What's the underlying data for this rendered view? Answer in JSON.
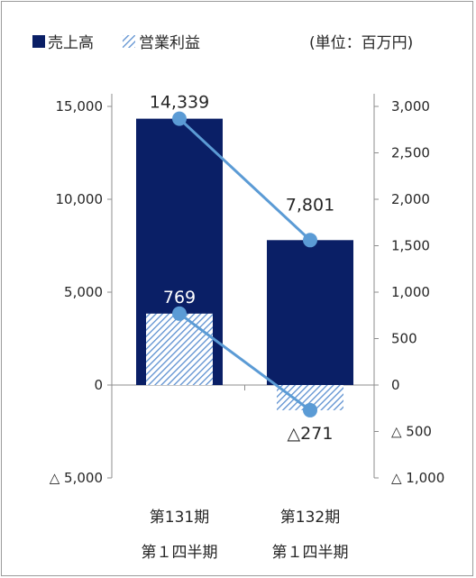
{
  "chart_data": {
    "type": "bar+line",
    "unit_label": "(単位：百万円)",
    "categories": [
      [
        "第131期",
        "第１四半期"
      ],
      [
        "第132期",
        "第１四半期"
      ]
    ],
    "series": [
      {
        "name": "売上高",
        "axis": "left",
        "values": [
          14339,
          7801
        ],
        "labels": [
          "14,339",
          "7,801"
        ],
        "color": "#0a1f66"
      },
      {
        "name": "営業利益",
        "axis": "right",
        "values": [
          769,
          -271
        ],
        "labels": [
          "769",
          "△271"
        ],
        "color": "#6fa0dc"
      }
    ],
    "line_color": "#5b9bd5",
    "left_axis": {
      "min": -5000,
      "max": 15000,
      "ticks": [
        15000,
        10000,
        5000,
        0,
        -5000
      ],
      "tick_labels": [
        "15,000",
        "10,000",
        "5,000",
        "0",
        "△ 5,000"
      ]
    },
    "right_axis": {
      "min": -1000,
      "max": 3000,
      "ticks": [
        3000,
        2500,
        2000,
        1500,
        1000,
        500,
        0,
        -500,
        -1000
      ],
      "tick_labels": [
        "3,000",
        "2,500",
        "2,000",
        "1,500",
        "1,000",
        "500",
        "0",
        "△ 500",
        "△ 1,000"
      ]
    }
  }
}
